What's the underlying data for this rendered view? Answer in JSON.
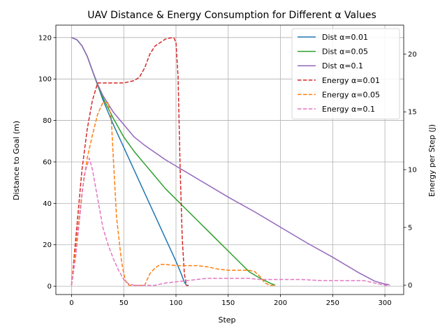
{
  "chart_data": {
    "type": "line",
    "title": "UAV Distance & Energy Consumption for Different α Values",
    "xlabel": "Step",
    "ylabel": "Distance to Goal (m)",
    "y2label": "Energy per Step (J)",
    "xlim": [
      -15,
      318
    ],
    "ylim": [
      -4,
      126
    ],
    "y2lim": [
      -0.8,
      22.5
    ],
    "xticks": [
      0,
      50,
      100,
      150,
      200,
      250,
      300
    ],
    "yticks": [
      0,
      20,
      40,
      60,
      80,
      100,
      120
    ],
    "y2ticks": [
      0,
      5,
      10,
      15,
      20
    ],
    "grid": true,
    "legend_position": "top-right",
    "series": [
      {
        "name": "Dist α=0.01",
        "axis": "left",
        "style": "solid",
        "color": "#1f77b4",
        "points": [
          [
            0,
            120
          ],
          [
            5,
            119
          ],
          [
            10,
            116
          ],
          [
            15,
            111
          ],
          [
            20,
            104
          ],
          [
            25,
            97
          ],
          [
            30,
            90
          ],
          [
            40,
            78
          ],
          [
            50,
            67
          ],
          [
            60,
            56
          ],
          [
            70,
            45
          ],
          [
            80,
            34
          ],
          [
            90,
            23
          ],
          [
            100,
            12
          ],
          [
            105,
            6
          ],
          [
            108,
            2
          ],
          [
            110,
            0.5
          ],
          [
            112,
            0.3
          ]
        ]
      },
      {
        "name": "Dist α=0.05",
        "axis": "left",
        "style": "solid",
        "color": "#2ca02c",
        "points": [
          [
            0,
            120
          ],
          [
            5,
            119
          ],
          [
            10,
            116
          ],
          [
            15,
            111
          ],
          [
            20,
            104
          ],
          [
            25,
            97
          ],
          [
            30,
            91
          ],
          [
            40,
            81
          ],
          [
            50,
            72
          ],
          [
            60,
            65
          ],
          [
            70,
            59
          ],
          [
            80,
            53
          ],
          [
            90,
            47
          ],
          [
            100,
            42
          ],
          [
            110,
            37
          ],
          [
            120,
            32
          ],
          [
            130,
            27
          ],
          [
            140,
            22
          ],
          [
            150,
            17
          ],
          [
            160,
            12
          ],
          [
            170,
            7
          ],
          [
            180,
            4
          ],
          [
            190,
            1.5
          ],
          [
            195,
            0.5
          ]
        ]
      },
      {
        "name": "Dist α=0.1",
        "axis": "left",
        "style": "solid",
        "color": "#9467bd",
        "points": [
          [
            0,
            120
          ],
          [
            5,
            119
          ],
          [
            10,
            116
          ],
          [
            15,
            111
          ],
          [
            20,
            104
          ],
          [
            25,
            97.5
          ],
          [
            30,
            92
          ],
          [
            40,
            84
          ],
          [
            50,
            78
          ],
          [
            60,
            72
          ],
          [
            70,
            68
          ],
          [
            80,
            64.5
          ],
          [
            90,
            61
          ],
          [
            100,
            58
          ],
          [
            120,
            52
          ],
          [
            150,
            43
          ],
          [
            175,
            36
          ],
          [
            200,
            28.5
          ],
          [
            225,
            21
          ],
          [
            250,
            14
          ],
          [
            275,
            6.5
          ],
          [
            290,
            2.5
          ],
          [
            300,
            1
          ],
          [
            304,
            0.8
          ]
        ]
      },
      {
        "name": "Energy α=0.01",
        "axis": "right",
        "style": "dashed",
        "color": "#d62728",
        "points": [
          [
            0,
            0
          ],
          [
            5,
            5
          ],
          [
            10,
            10
          ],
          [
            15,
            13.5
          ],
          [
            20,
            16
          ],
          [
            25,
            17.5
          ],
          [
            30,
            17.5
          ],
          [
            40,
            17.5
          ],
          [
            50,
            17.5
          ],
          [
            60,
            17.7
          ],
          [
            65,
            18
          ],
          [
            70,
            18.8
          ],
          [
            75,
            20
          ],
          [
            80,
            20.7
          ],
          [
            85,
            21
          ],
          [
            90,
            21.3
          ],
          [
            95,
            21.4
          ],
          [
            98,
            21.4
          ],
          [
            100,
            21
          ],
          [
            102,
            18
          ],
          [
            104,
            10
          ],
          [
            106,
            4
          ],
          [
            108,
            1
          ],
          [
            110,
            0
          ],
          [
            112,
            0
          ]
        ]
      },
      {
        "name": "Energy α=0.05",
        "axis": "right",
        "style": "dashed",
        "color": "#ff7f0e",
        "points": [
          [
            0,
            0
          ],
          [
            5,
            4
          ],
          [
            10,
            8
          ],
          [
            15,
            11
          ],
          [
            20,
            13
          ],
          [
            25,
            14.8
          ],
          [
            30,
            15.8
          ],
          [
            35,
            15.8
          ],
          [
            38,
            14.5
          ],
          [
            40,
            11
          ],
          [
            43,
            6
          ],
          [
            46,
            3.5
          ],
          [
            48,
            2
          ],
          [
            50,
            1
          ],
          [
            52,
            0.3
          ],
          [
            55,
            0
          ],
          [
            60,
            0
          ],
          [
            70,
            0
          ],
          [
            75,
            1
          ],
          [
            80,
            1.5
          ],
          [
            85,
            1.8
          ],
          [
            90,
            1.8
          ],
          [
            100,
            1.7
          ],
          [
            110,
            1.7
          ],
          [
            120,
            1.7
          ],
          [
            130,
            1.6
          ],
          [
            140,
            1.4
          ],
          [
            150,
            1.3
          ],
          [
            160,
            1.3
          ],
          [
            170,
            1.3
          ],
          [
            175,
            1.2
          ],
          [
            180,
            0.8
          ],
          [
            185,
            0.2
          ],
          [
            190,
            0
          ],
          [
            195,
            0
          ]
        ]
      },
      {
        "name": "Energy α=0.1",
        "axis": "right",
        "style": "dashed",
        "color": "#e377c2",
        "points": [
          [
            0,
            0
          ],
          [
            4,
            2.5
          ],
          [
            8,
            6
          ],
          [
            12,
            9.5
          ],
          [
            17,
            11
          ],
          [
            20,
            10
          ],
          [
            25,
            7.5
          ],
          [
            30,
            5
          ],
          [
            35,
            3.5
          ],
          [
            40,
            2.3
          ],
          [
            45,
            1.3
          ],
          [
            50,
            0.5
          ],
          [
            55,
            0.1
          ],
          [
            60,
            0
          ],
          [
            80,
            0
          ],
          [
            90,
            0.2
          ],
          [
            100,
            0.3
          ],
          [
            110,
            0.4
          ],
          [
            120,
            0.5
          ],
          [
            130,
            0.6
          ],
          [
            150,
            0.6
          ],
          [
            170,
            0.6
          ],
          [
            180,
            0.5
          ],
          [
            200,
            0.5
          ],
          [
            220,
            0.5
          ],
          [
            240,
            0.4
          ],
          [
            260,
            0.4
          ],
          [
            280,
            0.4
          ],
          [
            290,
            0.2
          ],
          [
            300,
            0
          ],
          [
            305,
            0
          ]
        ]
      }
    ]
  }
}
